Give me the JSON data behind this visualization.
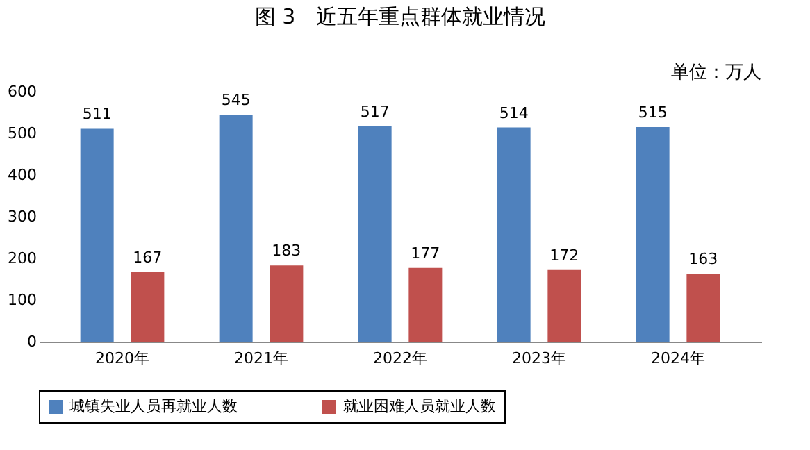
{
  "chart_data": {
    "type": "bar",
    "title": "图 3　近五年重点群体就业情况",
    "annotations": [
      "单位：万人"
    ],
    "categories": [
      "2020年",
      "2021年",
      "2022年",
      "2023年",
      "2024年"
    ],
    "series": [
      {
        "name": "城镇失业人员再就业人数",
        "color": "#4f81bd",
        "values": [
          511,
          545,
          517,
          514,
          515
        ]
      },
      {
        "name": "就业困难人员就业人数",
        "color": "#c0504d",
        "values": [
          167,
          183,
          177,
          172,
          163
        ]
      }
    ],
    "ylim": [
      0,
      600
    ],
    "yticks": [
      0,
      100,
      200,
      300,
      400,
      500,
      600
    ],
    "grid": false,
    "legend": "bottom",
    "data_labels": true
  }
}
